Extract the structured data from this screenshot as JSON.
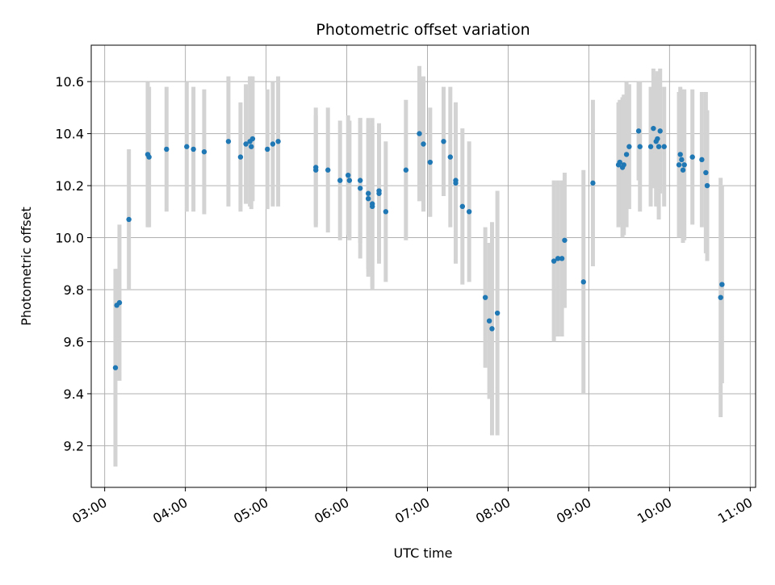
{
  "chart_data": {
    "type": "scatter",
    "title": "Photometric offset variation",
    "xlabel": "UTC time",
    "ylabel": "Photometric offset",
    "grid": true,
    "x_format": "HH:MM",
    "xlim": [
      "02:50",
      "11:04"
    ],
    "ylim": [
      9.04,
      10.74
    ],
    "xticks": [
      "03:00",
      "04:00",
      "05:00",
      "06:00",
      "07:00",
      "08:00",
      "09:00",
      "10:00",
      "11:00"
    ],
    "yticks": [
      "9.2",
      "9.4",
      "9.6",
      "9.8",
      "10.0",
      "10.2",
      "10.4",
      "10.6"
    ],
    "point_color": "#1f77b4",
    "errorbar_color": "#d3d3d3",
    "points": [
      {
        "t": "03:08",
        "y": 9.5,
        "err": 0.38
      },
      {
        "t": "03:09",
        "y": 9.74,
        "err": 0.14
      },
      {
        "t": "03:11",
        "y": 9.75,
        "err": 0.3
      },
      {
        "t": "03:18",
        "y": 10.07,
        "err": 0.27
      },
      {
        "t": "03:32",
        "y": 10.32,
        "err": 0.28
      },
      {
        "t": "03:33",
        "y": 10.31,
        "err": 0.27
      },
      {
        "t": "03:46",
        "y": 10.34,
        "err": 0.24
      },
      {
        "t": "04:01",
        "y": 10.35,
        "err": 0.25
      },
      {
        "t": "04:06",
        "y": 10.34,
        "err": 0.24
      },
      {
        "t": "04:14",
        "y": 10.33,
        "err": 0.24
      },
      {
        "t": "04:32",
        "y": 10.37,
        "err": 0.25
      },
      {
        "t": "04:41",
        "y": 10.31,
        "err": 0.21
      },
      {
        "t": "04:45",
        "y": 10.36,
        "err": 0.23
      },
      {
        "t": "04:48",
        "y": 10.37,
        "err": 0.25
      },
      {
        "t": "04:49",
        "y": 10.35,
        "err": 0.24
      },
      {
        "t": "04:50",
        "y": 10.38,
        "err": 0.24
      },
      {
        "t": "05:01",
        "y": 10.34,
        "err": 0.23
      },
      {
        "t": "05:05",
        "y": 10.36,
        "err": 0.24
      },
      {
        "t": "05:09",
        "y": 10.37,
        "err": 0.25
      },
      {
        "t": "05:37",
        "y": 10.27,
        "err": 0.23
      },
      {
        "t": "05:37",
        "y": 10.26,
        "err": 0.21
      },
      {
        "t": "05:46",
        "y": 10.26,
        "err": 0.24
      },
      {
        "t": "05:55",
        "y": 10.22,
        "err": 0.23
      },
      {
        "t": "06:01",
        "y": 10.24,
        "err": 0.23
      },
      {
        "t": "06:02",
        "y": 10.22,
        "err": 0.23
      },
      {
        "t": "06:10",
        "y": 10.22,
        "err": 0.24
      },
      {
        "t": "06:10",
        "y": 10.19,
        "err": 0.27
      },
      {
        "t": "06:16",
        "y": 10.17,
        "err": 0.29
      },
      {
        "t": "06:16",
        "y": 10.15,
        "err": 0.3
      },
      {
        "t": "06:19",
        "y": 10.13,
        "err": 0.33
      },
      {
        "t": "06:19",
        "y": 10.12,
        "err": 0.31
      },
      {
        "t": "06:24",
        "y": 10.18,
        "err": 0.25
      },
      {
        "t": "06:24",
        "y": 10.17,
        "err": 0.27
      },
      {
        "t": "06:29",
        "y": 10.1,
        "err": 0.27
      },
      {
        "t": "06:44",
        "y": 10.26,
        "err": 0.27
      },
      {
        "t": "06:54",
        "y": 10.4,
        "err": 0.26
      },
      {
        "t": "06:57",
        "y": 10.36,
        "err": 0.26
      },
      {
        "t": "07:02",
        "y": 10.29,
        "err": 0.21
      },
      {
        "t": "07:12",
        "y": 10.37,
        "err": 0.21
      },
      {
        "t": "07:17",
        "y": 10.31,
        "err": 0.27
      },
      {
        "t": "07:21",
        "y": 10.22,
        "err": 0.3
      },
      {
        "t": "07:21",
        "y": 10.21,
        "err": 0.31
      },
      {
        "t": "07:26",
        "y": 10.12,
        "err": 0.3
      },
      {
        "t": "07:31",
        "y": 10.1,
        "err": 0.27
      },
      {
        "t": "07:43",
        "y": 9.77,
        "err": 0.27
      },
      {
        "t": "07:46",
        "y": 9.68,
        "err": 0.3
      },
      {
        "t": "07:48",
        "y": 9.65,
        "err": 0.41
      },
      {
        "t": "07:52",
        "y": 9.71,
        "err": 0.47
      },
      {
        "t": "08:34",
        "y": 9.91,
        "err": 0.31
      },
      {
        "t": "08:37",
        "y": 9.92,
        "err": 0.3
      },
      {
        "t": "08:40",
        "y": 9.92,
        "err": 0.3
      },
      {
        "t": "08:42",
        "y": 9.99,
        "err": 0.26
      },
      {
        "t": "08:56",
        "y": 9.83,
        "err": 0.43
      },
      {
        "t": "09:03",
        "y": 10.21,
        "err": 0.32
      },
      {
        "t": "09:22",
        "y": 10.28,
        "err": 0.24
      },
      {
        "t": "09:23",
        "y": 10.29,
        "err": 0.24
      },
      {
        "t": "09:25",
        "y": 10.27,
        "err": 0.27
      },
      {
        "t": "09:26",
        "y": 10.28,
        "err": 0.27
      },
      {
        "t": "09:28",
        "y": 10.32,
        "err": 0.28
      },
      {
        "t": "09:30",
        "y": 10.35,
        "err": 0.24
      },
      {
        "t": "09:37",
        "y": 10.41,
        "err": 0.19
      },
      {
        "t": "09:38",
        "y": 10.35,
        "err": 0.25
      },
      {
        "t": "09:46",
        "y": 10.35,
        "err": 0.23
      },
      {
        "t": "09:48",
        "y": 10.42,
        "err": 0.23
      },
      {
        "t": "09:50",
        "y": 10.37,
        "err": 0.25
      },
      {
        "t": "09:51",
        "y": 10.38,
        "err": 0.26
      },
      {
        "t": "09:52",
        "y": 10.35,
        "err": 0.28
      },
      {
        "t": "09:53",
        "y": 10.41,
        "err": 0.24
      },
      {
        "t": "09:56",
        "y": 10.35,
        "err": 0.23
      },
      {
        "t": "10:07",
        "y": 10.28,
        "err": 0.28
      },
      {
        "t": "10:08",
        "y": 10.32,
        "err": 0.26
      },
      {
        "t": "10:09",
        "y": 10.3,
        "err": 0.27
      },
      {
        "t": "10:10",
        "y": 10.26,
        "err": 0.28
      },
      {
        "t": "10:11",
        "y": 10.28,
        "err": 0.29
      },
      {
        "t": "10:17",
        "y": 10.31,
        "err": 0.26
      },
      {
        "t": "10:24",
        "y": 10.3,
        "err": 0.26
      },
      {
        "t": "10:27",
        "y": 10.25,
        "err": 0.31
      },
      {
        "t": "10:28",
        "y": 10.2,
        "err": 0.29
      },
      {
        "t": "10:38",
        "y": 9.77,
        "err": 0.46
      },
      {
        "t": "10:39",
        "y": 9.82,
        "err": 0.38
      }
    ]
  }
}
